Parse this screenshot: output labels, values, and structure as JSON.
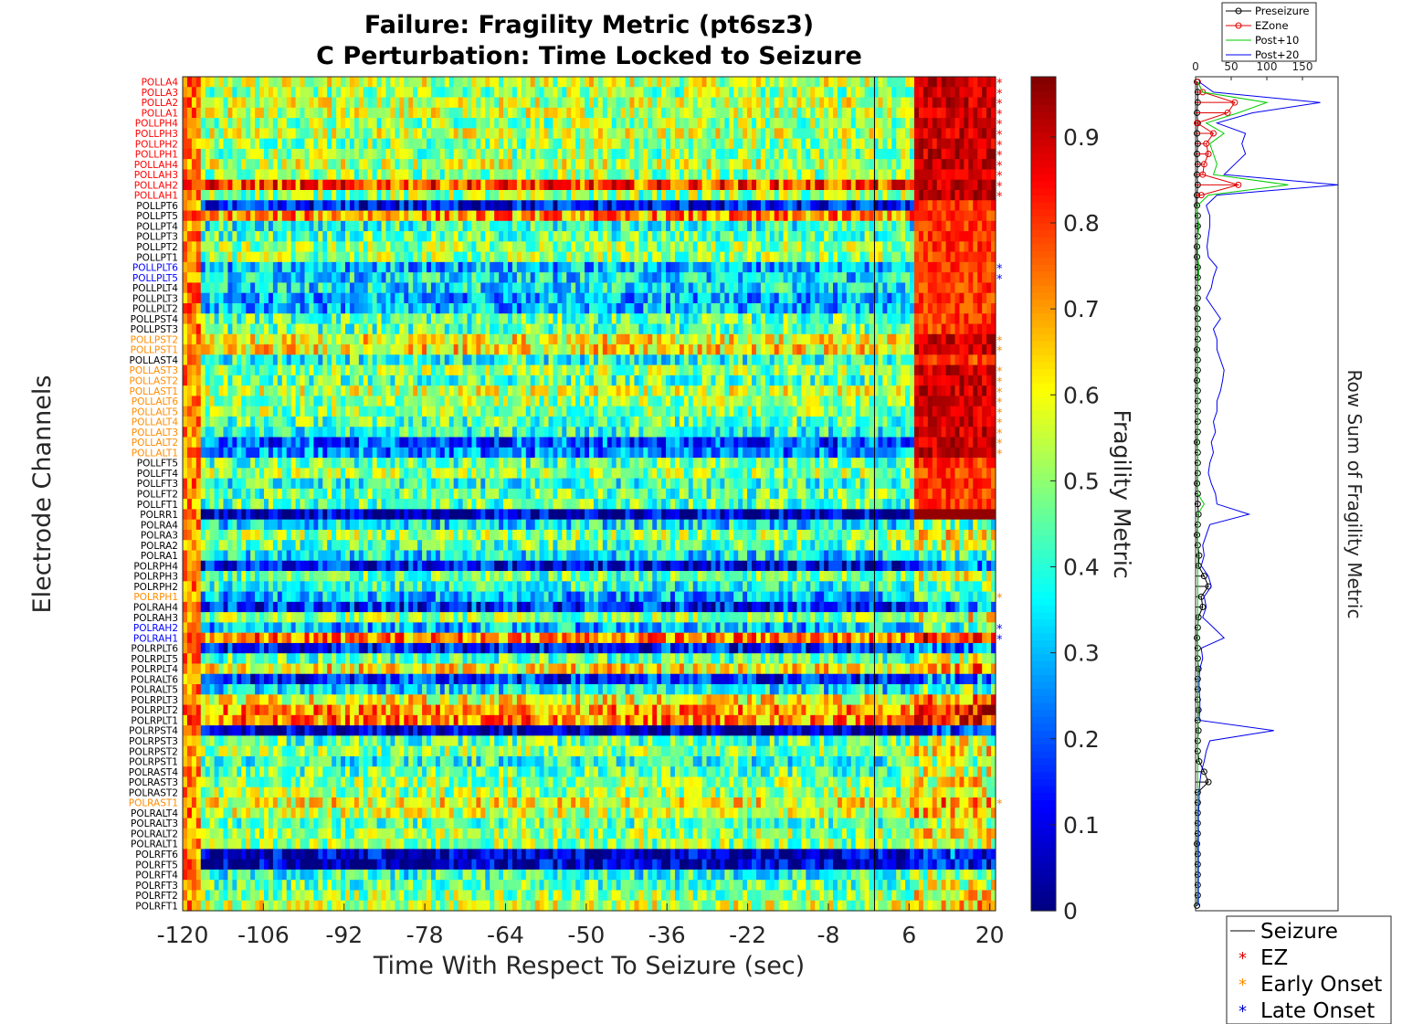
{
  "chart_data": [
    {
      "type": "heatmap",
      "title": "Failure: Fragility Metric (pt6sz3)",
      "subtitle": "C Perturbation:  Time Locked to Seizure",
      "xlabel": "Time With Respect To Seizure (sec)",
      "ylabel": "Electrode Channels",
      "xlim": [
        -120,
        21
      ],
      "x_ticks": [
        "-120",
        "-106",
        "-92",
        "-78",
        "-64",
        "-50",
        "-36",
        "-22",
        "-8",
        "6",
        "20"
      ],
      "seizure_onset_time": 0,
      "channels": [
        "POLLA4",
        "POLLA3",
        "POLLA2",
        "POLLA1",
        "POLLPH4",
        "POLLPH3",
        "POLLPH2",
        "POLLPH1",
        "POLLAH4",
        "POLLAH3",
        "POLLAH2",
        "POLLAH1",
        "POLLPT6",
        "POLLPT5",
        "POLLPT4",
        "POLLPT3",
        "POLLPT2",
        "POLLPT1",
        "POLLPLT6",
        "POLLPLT5",
        "POLLPLT4",
        "POLLPLT3",
        "POLLPLT2",
        "POLLPST4",
        "POLLPST3",
        "POLLPST2",
        "POLLPST1",
        "POLLAST4",
        "POLLAST3",
        "POLLAST2",
        "POLLAST1",
        "POLLALT6",
        "POLLALT5",
        "POLLALT4",
        "POLLALT3",
        "POLLALT2",
        "POLLALT1",
        "POLLFT5",
        "POLLFT4",
        "POLLFT3",
        "POLLFT2",
        "POLLFT1",
        "POLRR1",
        "POLRA4",
        "POLRA3",
        "POLRA2",
        "POLRA1",
        "POLRPH4",
        "POLRPH3",
        "POLRPH2",
        "POLRPH1",
        "POLRAH4",
        "POLRAH3",
        "POLRAH2",
        "POLRAH1",
        "POLRPLT6",
        "POLRPLT5",
        "POLRPLT4",
        "POLRALT6",
        "POLRALT5",
        "POLRPLT3",
        "POLRPLT2",
        "POLRPLT1",
        "POLRPST4",
        "POLRPST3",
        "POLRPST2",
        "POLRPST1",
        "POLRAST4",
        "POLRAST3",
        "POLRAST2",
        "POLRAST1",
        "POLRALT4",
        "POLRALT3",
        "POLRALT2",
        "POLRALT1",
        "POLRFT6",
        "POLRFT5",
        "POLRFT4",
        "POLRFT3",
        "POLRFT2",
        "POLRFT1"
      ],
      "ez_channels": [
        "POLLA4",
        "POLLA3",
        "POLLA2",
        "POLLA1",
        "POLLPH4",
        "POLLPH3",
        "POLLPH2",
        "POLLPH1",
        "POLLAH4",
        "POLLAH3",
        "POLLAH2",
        "POLLAH1"
      ],
      "early_onset_channels": [
        "POLLPST2",
        "POLLPST1",
        "POLLAST3",
        "POLLAST2",
        "POLLAST1",
        "POLLALT6",
        "POLLALT5",
        "POLLALT4",
        "POLLALT3",
        "POLLALT2",
        "POLLALT1",
        "POLRPH1",
        "POLRAST1"
      ],
      "late_onset_channels": [
        "POLLPLT6",
        "POLLPLT5",
        "POLRAH2",
        "POLRAH1"
      ],
      "row_baseline": [
        0.55,
        0.5,
        0.55,
        0.55,
        0.5,
        0.55,
        0.5,
        0.5,
        0.55,
        0.5,
        0.78,
        0.5,
        0.12,
        0.7,
        0.4,
        0.45,
        0.5,
        0.5,
        0.3,
        0.35,
        0.35,
        0.3,
        0.3,
        0.45,
        0.45,
        0.6,
        0.62,
        0.4,
        0.5,
        0.45,
        0.55,
        0.5,
        0.5,
        0.45,
        0.4,
        0.2,
        0.25,
        0.45,
        0.5,
        0.4,
        0.45,
        0.45,
        0.06,
        0.35,
        0.5,
        0.45,
        0.35,
        0.12,
        0.45,
        0.4,
        0.3,
        0.15,
        0.5,
        0.3,
        0.72,
        0.15,
        0.45,
        0.62,
        0.15,
        0.35,
        0.6,
        0.7,
        0.72,
        0.05,
        0.45,
        0.5,
        0.4,
        0.45,
        0.5,
        0.5,
        0.6,
        0.55,
        0.45,
        0.5,
        0.5,
        0.06,
        0.06,
        0.4,
        0.45,
        0.5,
        0.55
      ],
      "colorbar": {
        "label": "Fragility Metric",
        "range": [
          0,
          0.97
        ],
        "ticks": [
          "0",
          "0.1",
          "0.2",
          "0.3",
          "0.4",
          "0.5",
          "0.6",
          "0.7",
          "0.8",
          "0.9"
        ],
        "colormap": "jet"
      }
    },
    {
      "type": "line",
      "ylabel": "Row Sum of Fragility Metric",
      "xlim": [
        0,
        200
      ],
      "x_ticks": [
        "0",
        "50",
        "100",
        "150"
      ],
      "series": [
        {
          "name": "Preseizure",
          "color": "#000000",
          "marker": "circle",
          "values": [
            2,
            3,
            3,
            2,
            3,
            2,
            3,
            2,
            3,
            2,
            3,
            2,
            2,
            3,
            3,
            3,
            2,
            2,
            3,
            3,
            3,
            3,
            2,
            3,
            3,
            3,
            2,
            3,
            3,
            2,
            3,
            3,
            3,
            3,
            3,
            2,
            3,
            3,
            3,
            2,
            3,
            3,
            4,
            3,
            2,
            3,
            5,
            4,
            12,
            18,
            8,
            10,
            4,
            3,
            2,
            3,
            3,
            4,
            3,
            3,
            3,
            4,
            3,
            4,
            3,
            3,
            5,
            12,
            18,
            3,
            3,
            3,
            3,
            3,
            2,
            3,
            3,
            3,
            3,
            3,
            2
          ]
        },
        {
          "name": "EZone",
          "color": "#e00000",
          "marker": "circle",
          "values": [
            3,
            10,
            55,
            45,
            2,
            25,
            15,
            18,
            12,
            10,
            60,
            8
          ]
        },
        {
          "name": "Post+10",
          "color": "#00cc00",
          "values": [
            3,
            10,
            100,
            60,
            15,
            40,
            20,
            25,
            30,
            25,
            130,
            18,
            3,
            2,
            5,
            3,
            3,
            3,
            5,
            4,
            3,
            3,
            3,
            3,
            3,
            3,
            3,
            3,
            3,
            3,
            3,
            3,
            3,
            3,
            3,
            3,
            3,
            3,
            3,
            3,
            3,
            12,
            3,
            3,
            3,
            3,
            3,
            3,
            3,
            3,
            3,
            3,
            3,
            3,
            3,
            3,
            3,
            3,
            3,
            3,
            3,
            3,
            3,
            3,
            3,
            3,
            3,
            3,
            3,
            3,
            3,
            3,
            3,
            3,
            3,
            3,
            3,
            3,
            3,
            3,
            3
          ]
        },
        {
          "name": "Post+20",
          "color": "#0000ee",
          "values": [
            5,
            25,
            175,
            80,
            30,
            70,
            65,
            70,
            55,
            40,
            200,
            30,
            15,
            20,
            20,
            18,
            16,
            18,
            30,
            25,
            22,
            15,
            25,
            35,
            25,
            30,
            30,
            35,
            40,
            38,
            35,
            30,
            30,
            25,
            28,
            22,
            25,
            20,
            18,
            22,
            28,
            30,
            75,
            20,
            15,
            10,
            12,
            8,
            18,
            22,
            12,
            15,
            10,
            25,
            40,
            8,
            10,
            6,
            5,
            5,
            6,
            6,
            5,
            110,
            20,
            15,
            12,
            8,
            6,
            5,
            5,
            4,
            4,
            4,
            4,
            4,
            4,
            4,
            4,
            4,
            4
          ]
        }
      ]
    }
  ],
  "legend_bottom": {
    "items": [
      {
        "label": "Seizure",
        "marker": "line",
        "color": "#000000"
      },
      {
        "label": "EZ",
        "marker": "*",
        "color": "#e00000"
      },
      {
        "label": "Early Onset",
        "marker": "*",
        "color": "#ff8c00"
      },
      {
        "label": "Late Onset",
        "marker": "*",
        "color": "#0000cc"
      }
    ]
  },
  "label_colors": {
    "ez": "#ff0000",
    "early": "#ff8c00",
    "late": "#0000ff",
    "default": "#000000"
  }
}
